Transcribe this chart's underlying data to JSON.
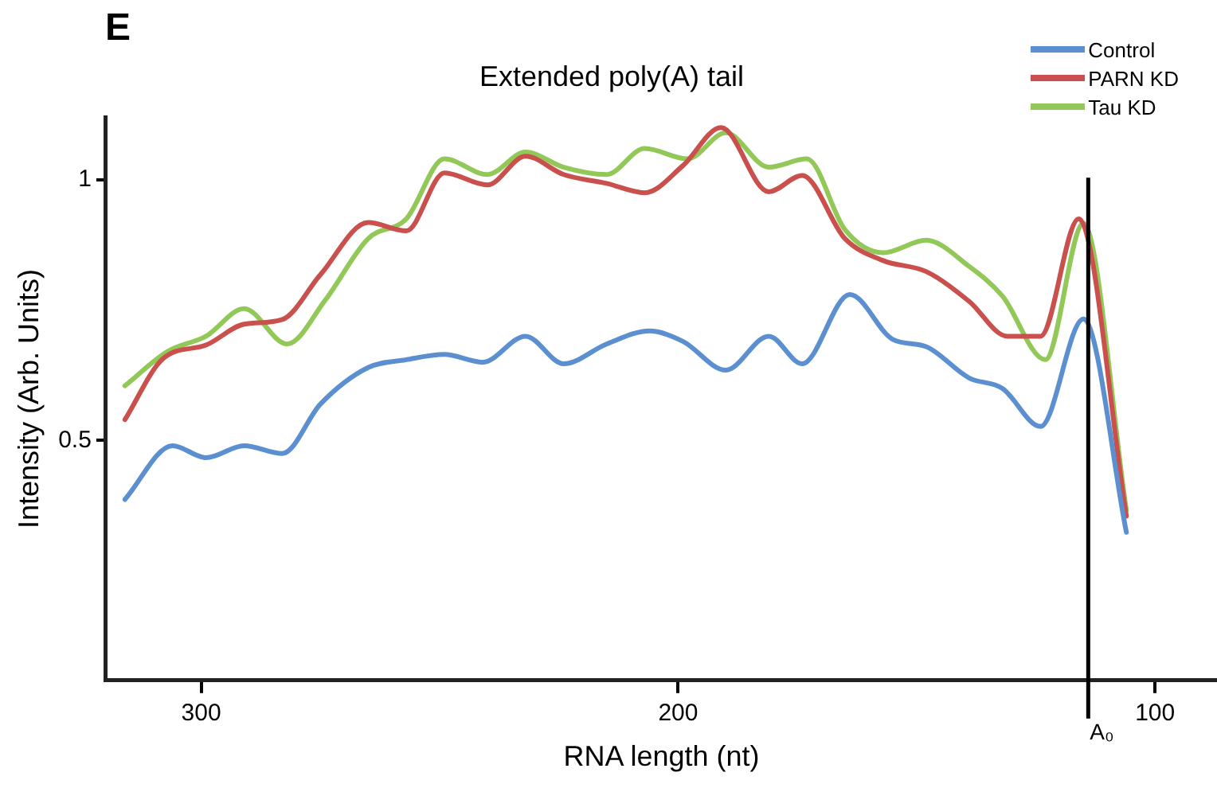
{
  "chart_data": {
    "type": "line",
    "title": "Extended poly(A) tail",
    "xlabel": "RNA length (nt)",
    "ylabel": "Intensity (Arb. Units)",
    "annotations": [
      "E"
    ],
    "xlim": [
      320,
      87
    ],
    "xticks": [
      300,
      200,
      100
    ],
    "ylim": [
      0.04,
      1.12
    ],
    "yticks": [
      1,
      0.5
    ],
    "grid": false,
    "legend": "top right",
    "marker": "none",
    "line_style": "solid",
    "ref_lines": [
      {
        "axis": "x",
        "value": 114,
        "label": "A₀",
        "color": "#000000"
      }
    ],
    "series": [
      {
        "name": "Control",
        "color": "#5b8fd0",
        "x": [
          316,
          306,
          299,
          291,
          283,
          275,
          265,
          257,
          249,
          241,
          232,
          224,
          215,
          206,
          199,
          190,
          181,
          174,
          164,
          155,
          148,
          139,
          132,
          124,
          115,
          106
        ],
        "values": [
          0.387,
          0.49,
          0.467,
          0.49,
          0.475,
          0.57,
          0.64,
          0.655,
          0.665,
          0.65,
          0.7,
          0.647,
          0.685,
          0.71,
          0.69,
          0.635,
          0.7,
          0.647,
          0.78,
          0.694,
          0.68,
          0.62,
          0.6,
          0.527,
          0.733,
          0.324
        ]
      },
      {
        "name": "PARN KD",
        "color": "#c9504d",
        "x": [
          316,
          308,
          299,
          291,
          283,
          275,
          265,
          257,
          249,
          240,
          232,
          224,
          215,
          207,
          199,
          191,
          181,
          174,
          165,
          157,
          148,
          139,
          131,
          124,
          116,
          106
        ],
        "values": [
          0.54,
          0.657,
          0.683,
          0.723,
          0.732,
          0.818,
          0.918,
          0.902,
          1.013,
          0.99,
          1.045,
          1.01,
          0.993,
          0.975,
          1.027,
          1.1,
          0.977,
          1.008,
          0.887,
          0.845,
          0.824,
          0.767,
          0.7,
          0.7,
          0.925,
          0.355
        ]
      },
      {
        "name": "Tau KD",
        "color": "#92c857",
        "x": [
          316,
          307,
          299,
          291,
          282,
          274,
          265,
          257,
          249,
          240,
          232,
          224,
          215,
          207,
          198,
          190,
          181,
          173,
          165,
          157,
          148,
          139,
          132,
          123,
          115,
          106
        ],
        "values": [
          0.605,
          0.671,
          0.7,
          0.753,
          0.685,
          0.769,
          0.887,
          0.925,
          1.04,
          1.01,
          1.053,
          1.024,
          1.01,
          1.06,
          1.04,
          1.09,
          1.024,
          1.04,
          0.904,
          0.86,
          0.884,
          0.834,
          0.777,
          0.655,
          0.916,
          0.366
        ]
      }
    ]
  }
}
